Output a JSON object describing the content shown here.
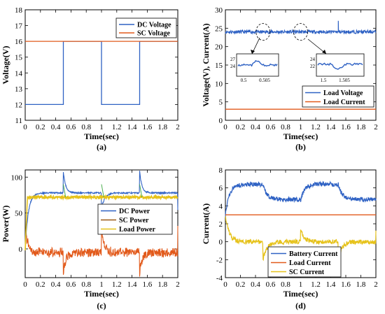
{
  "chart_data": [
    {
      "id": "a",
      "caption": "(a)",
      "type": "line",
      "xlabel": "Time(sec)",
      "ylabel": "Voltage(V)",
      "xlim": [
        0,
        2
      ],
      "ylim": [
        11,
        18
      ],
      "xticks": [
        0,
        0.2,
        0.4,
        0.6,
        0.8,
        1,
        1.2,
        1.4,
        1.6,
        1.8,
        2
      ],
      "xtick_labels": [
        "0",
        "0.2",
        "0.4",
        "0.6",
        "0.8",
        "1",
        "1.2",
        "1.4",
        "1.6",
        "1.8",
        "2"
      ],
      "yticks": [
        11,
        12,
        13,
        14,
        15,
        16,
        17,
        18
      ],
      "ytick_labels": [
        "11",
        "12",
        "13",
        "14",
        "15",
        "16",
        "17",
        "18"
      ],
      "legend_position": "top-right",
      "series": [
        {
          "name": "DC Voltage",
          "color": "#2f62c4",
          "points": [
            [
              0,
              12
            ],
            [
              0.5,
              12
            ],
            [
              0.5,
              16
            ],
            [
              1.0,
              16
            ],
            [
              1.0,
              12
            ],
            [
              1.5,
              12
            ],
            [
              1.5,
              16
            ],
            [
              2,
              16
            ]
          ]
        },
        {
          "name": "SC Voltage",
          "color": "#e25a1b",
          "points": [
            [
              0,
              16
            ],
            [
              2,
              16
            ]
          ]
        }
      ]
    },
    {
      "id": "b",
      "caption": "(b)",
      "type": "line",
      "xlabel": "Time(sec)",
      "ylabel": "Voltage(V), Current(A)",
      "xlim": [
        0,
        2
      ],
      "ylim": [
        0,
        30
      ],
      "xticks": [
        0,
        0.2,
        0.4,
        0.6,
        0.8,
        1,
        1.2,
        1.4,
        1.6,
        1.8,
        2
      ],
      "xtick_labels": [
        "0",
        "0.2",
        "0.4",
        "0.6",
        "0.8",
        "1",
        "1.2",
        "1.4",
        "1.6",
        "1.8",
        "2"
      ],
      "yticks": [
        0,
        5,
        10,
        15,
        20,
        25,
        30
      ],
      "ytick_labels": [
        "0",
        "5",
        "10",
        "15",
        "20",
        "25",
        "30"
      ],
      "legend_position": "bottom-right",
      "series": [
        {
          "name": "Load Voltage",
          "color": "#2f62c4",
          "points": [
            [
              0,
              24
            ],
            [
              0.5,
              24
            ],
            [
              0.5,
              24.8
            ],
            [
              0.51,
              24
            ],
            [
              1.0,
              24
            ],
            [
              1.0,
              23.2
            ],
            [
              1.01,
              24
            ],
            [
              1.5,
              24
            ],
            [
              1.5,
              26.5
            ],
            [
              1.505,
              24
            ],
            [
              2,
              24
            ]
          ]
        },
        {
          "name": "Load Current",
          "color": "#e25a1b",
          "points": [
            [
              0,
              3
            ],
            [
              2,
              3
            ]
          ]
        }
      ],
      "insets": [
        {
          "x_ticks": [
            "0.5",
            "0.505"
          ],
          "y_ticks": [
            "27",
            "24"
          ]
        },
        {
          "x_ticks": [
            "1.5",
            "1.505"
          ],
          "y_ticks": [
            "24",
            "22"
          ]
        }
      ]
    },
    {
      "id": "c",
      "caption": "(c)",
      "type": "line",
      "xlabel": "Time(sec)",
      "ylabel": "Power(W)",
      "xlim": [
        0,
        2
      ],
      "ylim": [
        -40,
        110
      ],
      "xticks": [
        0,
        0.2,
        0.4,
        0.6,
        0.8,
        1,
        1.2,
        1.4,
        1.6,
        1.8,
        2
      ],
      "xtick_labels": [
        "0",
        "0.2",
        "0.4",
        "0.6",
        "0.8",
        "1",
        "1.2",
        "1.4",
        "1.6",
        "1.8",
        "2"
      ],
      "yticks": [
        0,
        50,
        100
      ],
      "ytick_labels": [
        "0",
        "50",
        "100"
      ],
      "legend_position": "center-right",
      "series": [
        {
          "name": "DC Power",
          "color": "#2f62c4"
        },
        {
          "name": "SC Power",
          "color": "#9b5a16"
        },
        {
          "name": "Load Power",
          "color": "#e6c21a"
        }
      ]
    },
    {
      "id": "d",
      "caption": "(d)",
      "type": "line",
      "xlabel": "Time(sec)",
      "ylabel": "Current(A)",
      "xlim": [
        0,
        2
      ],
      "ylim": [
        -4,
        8
      ],
      "xticks": [
        0,
        0.2,
        0.4,
        0.6,
        0.8,
        1,
        1.2,
        1.4,
        1.6,
        1.8,
        2
      ],
      "xtick_labels": [
        "0",
        "0.2",
        "0.4",
        "0.6",
        "0.8",
        "1",
        "1.2",
        "1.4",
        "1.6",
        "1.8",
        "2"
      ],
      "yticks": [
        -4,
        -2,
        0,
        2,
        4,
        6,
        8
      ],
      "ytick_labels": [
        "-4",
        "-2",
        "0",
        "2",
        "4",
        "6",
        "8"
      ],
      "legend_position": "bottom-right",
      "series": [
        {
          "name": "Battery Current",
          "color": "#2f62c4"
        },
        {
          "name": "Load Current",
          "color": "#e25a1b"
        },
        {
          "name": "SC Current",
          "color": "#e6c21a"
        }
      ]
    }
  ]
}
